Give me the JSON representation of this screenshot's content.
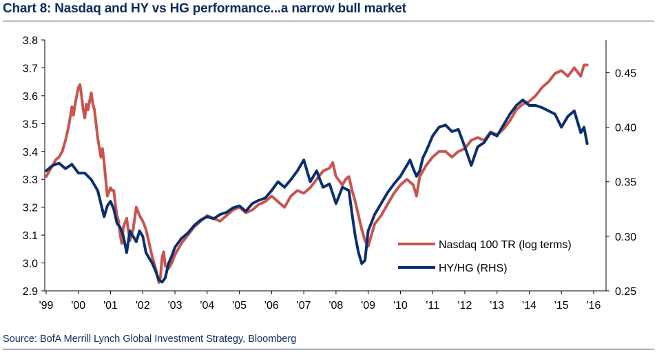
{
  "chart_data": {
    "type": "line",
    "title": "Chart 8: Nasdaq and HY vs HG performance...a narrow bull market",
    "source": "Source: BofA Merrill Lynch Global Investment Strategy, Bloomberg",
    "x_ticks": [
      "'99",
      "'00",
      "'01",
      "'02",
      "'03",
      "'04",
      "'05",
      "'06",
      "'07",
      "'08",
      "'09",
      "'10",
      "'11",
      "'12",
      "'13",
      "'14",
      "'15",
      "'16"
    ],
    "xlim": [
      1999,
      2016
    ],
    "left_axis": {
      "ylim": [
        2.9,
        3.8
      ],
      "ticks": [
        "2.9",
        "3.0",
        "3.1",
        "3.2",
        "3.3",
        "3.4",
        "3.5",
        "3.6",
        "3.7",
        "3.8"
      ]
    },
    "right_axis": {
      "ylim": [
        0.25,
        0.48
      ],
      "ticks": [
        "0.25",
        "0.30",
        "0.35",
        "0.40",
        "0.45"
      ]
    },
    "legend_position": "lower-right",
    "colors": {
      "nasdaq": "#c8554f",
      "hyhg": "#0c2f6e",
      "axis": "#000000",
      "title": "#0f2a5c"
    },
    "series": [
      {
        "name": "Nasdaq 100 TR (log terms)",
        "axis": "left",
        "color": "#c8554f",
        "x": [
          1999.0,
          1999.1,
          1999.2,
          1999.3,
          1999.4,
          1999.5,
          1999.6,
          1999.7,
          1999.8,
          1999.85,
          1999.9,
          2000.0,
          2000.05,
          2000.1,
          2000.15,
          2000.2,
          2000.25,
          2000.3,
          2000.35,
          2000.4,
          2000.45,
          2000.5,
          2000.55,
          2000.6,
          2000.7,
          2000.75,
          2000.8,
          2000.85,
          2000.9,
          2001.0,
          2001.05,
          2001.1,
          2001.15,
          2001.2,
          2001.25,
          2001.3,
          2001.35,
          2001.4,
          2001.5,
          2001.55,
          2001.6,
          2001.7,
          2001.8,
          2001.9,
          2002.0,
          2002.1,
          2002.2,
          2002.3,
          2002.4,
          2002.5,
          2002.55,
          2002.6,
          2002.65,
          2002.7,
          2002.8,
          2002.9,
          2003.0,
          2003.2,
          2003.4,
          2003.6,
          2003.8,
          2004.0,
          2004.2,
          2004.4,
          2004.6,
          2004.8,
          2005.0,
          2005.2,
          2005.4,
          2005.6,
          2005.8,
          2006.0,
          2006.2,
          2006.4,
          2006.6,
          2006.8,
          2007.0,
          2007.2,
          2007.4,
          2007.6,
          2007.8,
          2007.9,
          2008.0,
          2008.2,
          2008.3,
          2008.4,
          2008.5,
          2008.6,
          2008.7,
          2008.8,
          2008.9,
          2009.0,
          2009.1,
          2009.2,
          2009.4,
          2009.6,
          2009.8,
          2010.0,
          2010.2,
          2010.4,
          2010.5,
          2010.6,
          2010.8,
          2011.0,
          2011.2,
          2011.4,
          2011.6,
          2011.8,
          2012.0,
          2012.2,
          2012.4,
          2012.6,
          2012.8,
          2013.0,
          2013.2,
          2013.4,
          2013.6,
          2013.8,
          2014.0,
          2014.2,
          2014.4,
          2014.6,
          2014.8,
          2015.0,
          2015.2,
          2015.4,
          2015.6,
          2015.7,
          2015.8
        ],
        "values": [
          3.31,
          3.33,
          3.35,
          3.37,
          3.38,
          3.4,
          3.44,
          3.49,
          3.56,
          3.53,
          3.57,
          3.63,
          3.64,
          3.6,
          3.55,
          3.52,
          3.57,
          3.55,
          3.58,
          3.61,
          3.57,
          3.55,
          3.5,
          3.45,
          3.38,
          3.41,
          3.36,
          3.3,
          3.24,
          3.27,
          3.26,
          3.26,
          3.21,
          3.17,
          3.15,
          3.1,
          3.07,
          3.13,
          3.16,
          3.12,
          3.08,
          3.12,
          3.2,
          3.17,
          3.15,
          3.12,
          3.07,
          3.02,
          2.98,
          2.93,
          2.95,
          3.02,
          3.04,
          2.99,
          2.98,
          3.0,
          3.03,
          3.07,
          3.1,
          3.13,
          3.15,
          3.17,
          3.16,
          3.15,
          3.17,
          3.19,
          3.2,
          3.18,
          3.19,
          3.21,
          3.22,
          3.24,
          3.22,
          3.2,
          3.24,
          3.26,
          3.25,
          3.27,
          3.3,
          3.33,
          3.34,
          3.36,
          3.31,
          3.28,
          3.3,
          3.31,
          3.26,
          3.22,
          3.17,
          3.12,
          3.08,
          3.06,
          3.1,
          3.14,
          3.17,
          3.21,
          3.25,
          3.28,
          3.3,
          3.28,
          3.24,
          3.31,
          3.35,
          3.38,
          3.4,
          3.4,
          3.38,
          3.4,
          3.41,
          3.44,
          3.45,
          3.44,
          3.47,
          3.46,
          3.48,
          3.51,
          3.55,
          3.57,
          3.58,
          3.6,
          3.63,
          3.65,
          3.68,
          3.69,
          3.67,
          3.7,
          3.67,
          3.71,
          3.71
        ]
      },
      {
        "name": "HY/HG (RHS)",
        "axis": "right",
        "color": "#0c2f6e",
        "x": [
          1999.0,
          1999.2,
          1999.4,
          1999.6,
          1999.8,
          2000.0,
          2000.2,
          2000.4,
          2000.6,
          2000.8,
          2000.9,
          2001.0,
          2001.1,
          2001.2,
          2001.3,
          2001.4,
          2001.5,
          2001.6,
          2001.7,
          2001.8,
          2001.9,
          2002.0,
          2002.1,
          2002.2,
          2002.3,
          2002.4,
          2002.5,
          2002.6,
          2002.7,
          2002.8,
          2002.9,
          2003.0,
          2003.2,
          2003.4,
          2003.6,
          2003.8,
          2004.0,
          2004.2,
          2004.4,
          2004.6,
          2004.8,
          2005.0,
          2005.2,
          2005.4,
          2005.6,
          2005.8,
          2006.0,
          2006.2,
          2006.4,
          2006.6,
          2006.8,
          2007.0,
          2007.2,
          2007.4,
          2007.5,
          2007.6,
          2007.8,
          2008.0,
          2008.2,
          2008.4,
          2008.5,
          2008.6,
          2008.7,
          2008.8,
          2008.9,
          2009.0,
          2009.2,
          2009.4,
          2009.6,
          2009.8,
          2010.0,
          2010.1,
          2010.2,
          2010.3,
          2010.4,
          2010.5,
          2010.6,
          2010.7,
          2010.8,
          2011.0,
          2011.2,
          2011.4,
          2011.6,
          2011.8,
          2011.9,
          2012.0,
          2012.2,
          2012.4,
          2012.6,
          2012.8,
          2013.0,
          2013.2,
          2013.4,
          2013.6,
          2013.8,
          2014.0,
          2014.2,
          2014.4,
          2014.6,
          2014.8,
          2015.0,
          2015.2,
          2015.4,
          2015.5,
          2015.6,
          2015.7,
          2015.8
        ],
        "values": [
          0.36,
          0.365,
          0.367,
          0.362,
          0.366,
          0.358,
          0.358,
          0.352,
          0.342,
          0.318,
          0.328,
          0.332,
          0.325,
          0.312,
          0.308,
          0.3,
          0.285,
          0.305,
          0.3,
          0.295,
          0.305,
          0.3,
          0.285,
          0.28,
          0.275,
          0.268,
          0.26,
          0.258,
          0.262,
          0.275,
          0.282,
          0.29,
          0.298,
          0.303,
          0.31,
          0.315,
          0.318,
          0.316,
          0.32,
          0.322,
          0.326,
          0.328,
          0.323,
          0.33,
          0.333,
          0.335,
          0.342,
          0.35,
          0.345,
          0.352,
          0.36,
          0.37,
          0.35,
          0.36,
          0.352,
          0.345,
          0.348,
          0.33,
          0.345,
          0.342,
          0.32,
          0.3,
          0.285,
          0.275,
          0.278,
          0.305,
          0.32,
          0.33,
          0.34,
          0.348,
          0.355,
          0.36,
          0.365,
          0.37,
          0.362,
          0.355,
          0.36,
          0.372,
          0.378,
          0.392,
          0.4,
          0.402,
          0.396,
          0.398,
          0.39,
          0.382,
          0.365,
          0.382,
          0.386,
          0.395,
          0.392,
          0.402,
          0.412,
          0.42,
          0.425,
          0.42,
          0.42,
          0.418,
          0.415,
          0.412,
          0.4,
          0.41,
          0.415,
          0.405,
          0.395,
          0.4,
          0.385
        ]
      }
    ]
  }
}
